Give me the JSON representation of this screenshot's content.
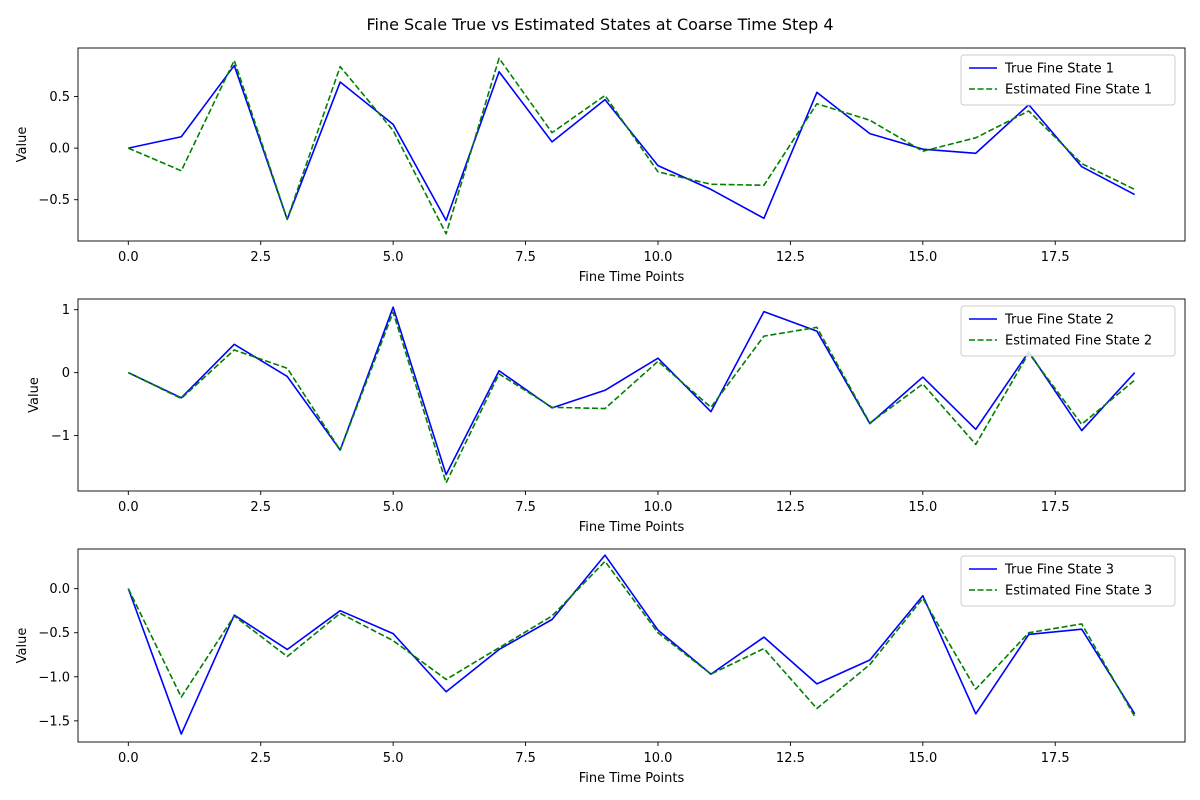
{
  "figure": {
    "title": "Fine Scale True vs Estimated States at Coarse Time Step 4"
  },
  "colors": {
    "true_series": "#0000ff",
    "estimated_series": "#008000"
  },
  "chart_data": [
    {
      "type": "line",
      "xlabel": "Fine Time Points",
      "ylabel": "Value",
      "xlim": [
        -0.95,
        19.95
      ],
      "ylim": [
        -0.9,
        0.97
      ],
      "x_ticks": [
        0.0,
        2.5,
        5.0,
        7.5,
        10.0,
        12.5,
        15.0,
        17.5
      ],
      "y_ticks": [
        -0.5,
        0.0,
        0.5
      ],
      "legend_position": "top-right",
      "grid": false,
      "x": [
        0,
        1,
        2,
        3,
        4,
        5,
        6,
        7,
        8,
        9,
        10,
        11,
        12,
        13,
        14,
        15,
        16,
        17,
        18,
        19
      ],
      "series": [
        {
          "name": "True Fine State 1",
          "style": "solid",
          "values": [
            0.0,
            0.11,
            0.8,
            -0.69,
            0.64,
            0.23,
            -0.7,
            0.74,
            0.06,
            0.47,
            -0.17,
            -0.4,
            -0.68,
            0.54,
            0.14,
            -0.01,
            -0.05,
            0.42,
            -0.18,
            -0.45
          ]
        },
        {
          "name": "Estimated Fine State 1",
          "style": "dashed",
          "values": [
            0.0,
            -0.22,
            0.85,
            -0.69,
            0.79,
            0.17,
            -0.83,
            0.87,
            0.15,
            0.51,
            -0.23,
            -0.35,
            -0.36,
            0.43,
            0.27,
            -0.03,
            0.1,
            0.36,
            -0.15,
            -0.4
          ]
        }
      ]
    },
    {
      "type": "line",
      "xlabel": "Fine Time Points",
      "ylabel": "Value",
      "xlim": [
        -0.95,
        19.95
      ],
      "ylim": [
        -1.88,
        1.17
      ],
      "x_ticks": [
        0.0,
        2.5,
        5.0,
        7.5,
        10.0,
        12.5,
        15.0,
        17.5
      ],
      "y_ticks": [
        -1,
        0,
        1
      ],
      "legend_position": "top-right",
      "grid": false,
      "x": [
        0,
        1,
        2,
        3,
        4,
        5,
        6,
        7,
        8,
        9,
        10,
        11,
        12,
        13,
        14,
        15,
        16,
        17,
        18,
        19
      ],
      "series": [
        {
          "name": "True Fine State 2",
          "style": "solid",
          "values": [
            0.0,
            -0.4,
            0.45,
            -0.06,
            -1.23,
            1.04,
            -1.62,
            0.03,
            -0.56,
            -0.28,
            0.23,
            -0.62,
            0.97,
            0.66,
            -0.81,
            -0.07,
            -0.9,
            0.33,
            -0.92,
            0.0
          ]
        },
        {
          "name": "Estimated Fine State 2",
          "style": "dashed",
          "values": [
            0.0,
            -0.41,
            0.36,
            0.07,
            -1.23,
            0.96,
            -1.75,
            -0.02,
            -0.55,
            -0.57,
            0.18,
            -0.55,
            0.58,
            0.72,
            -0.8,
            -0.18,
            -1.14,
            0.31,
            -0.82,
            -0.12
          ]
        }
      ]
    },
    {
      "type": "line",
      "xlabel": "Fine Time Points",
      "ylabel": "Value",
      "xlim": [
        -0.95,
        19.95
      ],
      "ylim": [
        -1.74,
        0.45
      ],
      "x_ticks": [
        0.0,
        2.5,
        5.0,
        7.5,
        10.0,
        12.5,
        15.0,
        17.5
      ],
      "y_ticks": [
        -1.5,
        -1.0,
        -0.5,
        0.0
      ],
      "legend_position": "top-right",
      "grid": false,
      "x": [
        0,
        1,
        2,
        3,
        4,
        5,
        6,
        7,
        8,
        9,
        10,
        11,
        12,
        13,
        14,
        15,
        16,
        17,
        18,
        19
      ],
      "series": [
        {
          "name": "True Fine State 3",
          "style": "solid",
          "values": [
            0.0,
            -1.65,
            -0.3,
            -0.69,
            -0.25,
            -0.51,
            -1.17,
            -0.69,
            -0.35,
            0.38,
            -0.47,
            -0.97,
            -0.55,
            -1.08,
            -0.81,
            -0.08,
            -1.42,
            -0.52,
            -0.46,
            -1.42
          ]
        },
        {
          "name": "Estimated Fine State 3",
          "style": "dashed",
          "values": [
            0.0,
            -1.23,
            -0.31,
            -0.77,
            -0.28,
            -0.59,
            -1.03,
            -0.67,
            -0.31,
            0.31,
            -0.5,
            -0.97,
            -0.68,
            -1.36,
            -0.86,
            -0.11,
            -1.14,
            -0.5,
            -0.4,
            -1.45
          ]
        }
      ]
    }
  ]
}
